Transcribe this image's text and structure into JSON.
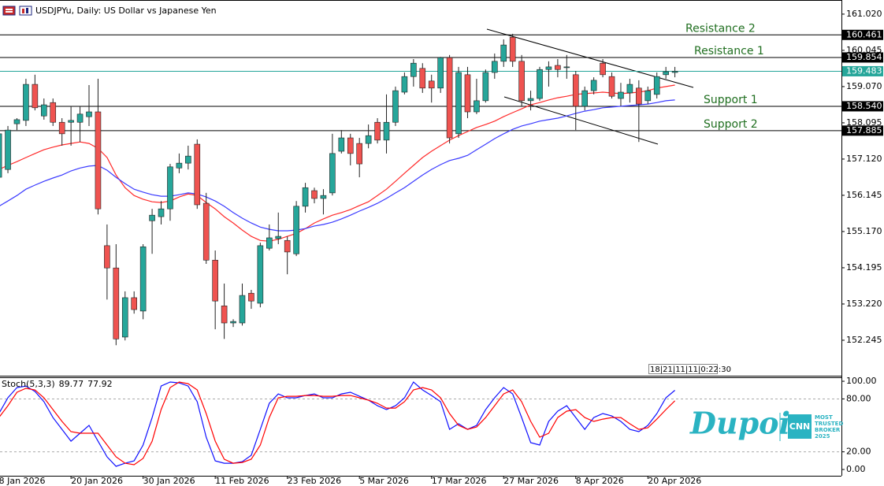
{
  "chart_data": {
    "type": "candlestick",
    "title": "USDJPYu, Daily:  US Dollar vs Japanese Yen",
    "timer_text": "18|21|11|11|0:22:30",
    "categories": [
      "8 Jan 2026",
      null,
      null,
      null,
      null,
      null,
      null,
      null,
      "20 Jan 2026",
      null,
      null,
      null,
      null,
      null,
      null,
      null,
      "30 Jan 2026",
      null,
      null,
      null,
      null,
      null,
      null,
      null,
      "11 Feb 2026",
      null,
      null,
      null,
      null,
      null,
      null,
      null,
      "23 Feb 2026",
      null,
      null,
      null,
      null,
      null,
      null,
      null,
      "5 Mar 2026",
      null,
      null,
      null,
      null,
      null,
      null,
      null,
      "17 Mar 2026",
      null,
      null,
      null,
      null,
      null,
      null,
      null,
      "27 Mar 2026",
      null,
      null,
      null,
      null,
      null,
      null,
      null,
      "8 Apr 2026",
      null,
      null,
      null,
      null,
      null,
      null,
      null,
      "20 Apr 2026",
      null,
      null,
      null
    ],
    "open": [
      156.63,
      156.84,
      158.07,
      158.16,
      159.13,
      158.28,
      158.64,
      158.11,
      158.11,
      158.11,
      158.26,
      158.39,
      154.79,
      154.19,
      152.33,
      153.39,
      153.03,
      155.46,
      155.57,
      155.78,
      156.88,
      157.01,
      157.52,
      155.93,
      154.4,
      153.17,
      152.71,
      152.71,
      153.51,
      153.24,
      154.72,
      154.98,
      154.93,
      154.57,
      155.85,
      156.27,
      156.06,
      156.21,
      157.33,
      157.69,
      157.54,
      157.54,
      158.11,
      157.63,
      158.11,
      158.92,
      159.34,
      159.56,
      159.22,
      159.03,
      159.85,
      157.8,
      159.39,
      158.39,
      158.69,
      159.45,
      159.75,
      160.4,
      159.75,
      158.69,
      158.75,
      159.53,
      159.64,
      159.6,
      159.39,
      158.54,
      158.96,
      159.7,
      159.34,
      158.75,
      158.9,
      159.03,
      158.69,
      158.86,
      159.39,
      159.45
    ],
    "high": [
      157.9,
      158.01,
      158.22,
      159.28,
      159.39,
      158.75,
      158.75,
      158.22,
      158.54,
      158.54,
      159.11,
      159.28,
      155.36,
      154.83,
      153.56,
      153.56,
      154.83,
      155.78,
      155.99,
      156.99,
      157.27,
      157.48,
      157.65,
      156.21,
      154.66,
      153.77,
      152.81,
      153.77,
      153.6,
      154.87,
      155.36,
      155.68,
      155.04,
      155.99,
      156.48,
      156.35,
      156.31,
      157.8,
      157.9,
      157.8,
      157.69,
      158.05,
      158.22,
      158.86,
      159.07,
      159.45,
      159.81,
      159.7,
      159.39,
      159.87,
      159.92,
      159.6,
      159.6,
      159.28,
      159.53,
      159.96,
      160.34,
      160.49,
      159.92,
      158.96,
      159.6,
      159.75,
      159.81,
      159.92,
      159.49,
      159.07,
      159.32,
      159.81,
      159.45,
      159.17,
      159.28,
      159.24,
      159.07,
      159.45,
      159.6,
      159.6
    ],
    "low": [
      156.52,
      156.74,
      157.9,
      158.01,
      158.43,
      158.18,
      158.01,
      157.48,
      157.48,
      157.58,
      158.01,
      155.63,
      153.34,
      152.11,
      152.24,
      152.96,
      152.81,
      154.57,
      155.36,
      155.46,
      156.74,
      156.84,
      155.78,
      154.3,
      152.54,
      152.28,
      152.6,
      152.64,
      153.09,
      153.13,
      154.66,
      154.83,
      154.02,
      154.51,
      155.68,
      155.93,
      155.63,
      156.14,
      157.27,
      156.95,
      156.63,
      157.41,
      157.54,
      157.27,
      158.01,
      158.86,
      159.07,
      158.9,
      158.64,
      158.9,
      157.54,
      157.69,
      158.22,
      158.33,
      158.64,
      159.28,
      159.6,
      159.6,
      158.54,
      158.43,
      158.69,
      159.07,
      159.32,
      159.28,
      157.9,
      158.43,
      158.86,
      159.32,
      158.75,
      158.54,
      158.64,
      157.58,
      158.6,
      158.75,
      159.28,
      159.32
    ],
    "close": [
      157.8,
      157.9,
      158.18,
      159.13,
      158.5,
      158.58,
      158.11,
      157.8,
      158.16,
      158.33,
      158.39,
      155.78,
      154.19,
      152.28,
      153.39,
      153.07,
      154.76,
      155.61,
      155.78,
      156.91,
      157.01,
      157.2,
      155.89,
      154.4,
      153.3,
      152.71,
      152.75,
      153.45,
      153.3,
      154.79,
      155.0,
      155.04,
      154.62,
      155.85,
      156.35,
      156.06,
      156.14,
      157.27,
      157.69,
      157.27,
      156.99,
      157.75,
      157.63,
      158.11,
      158.96,
      159.34,
      159.7,
      159.03,
      159.03,
      159.85,
      157.69,
      159.45,
      158.39,
      158.69,
      159.45,
      159.75,
      160.19,
      159.75,
      158.69,
      158.75,
      159.53,
      159.6,
      159.53,
      159.6,
      158.54,
      158.96,
      159.24,
      159.39,
      158.81,
      158.92,
      159.13,
      158.6,
      158.96,
      159.34,
      159.47,
      159.483
    ],
    "up_color": "#26a69a",
    "down_color": "#ef5350",
    "overlays": [
      {
        "color": "#ff2a2a",
        "values": [
          156.84,
          156.95,
          157.05,
          157.16,
          157.27,
          157.37,
          157.44,
          157.5,
          157.54,
          157.58,
          157.54,
          157.41,
          157.16,
          156.69,
          156.35,
          156.14,
          156.04,
          155.97,
          155.95,
          155.99,
          156.1,
          156.18,
          156.14,
          155.95,
          155.78,
          155.57,
          155.4,
          155.21,
          155.04,
          154.93,
          154.91,
          154.96,
          155.04,
          155.12,
          155.25,
          155.4,
          155.51,
          155.61,
          155.68,
          155.76,
          155.87,
          155.97,
          156.14,
          156.31,
          156.52,
          156.74,
          156.95,
          157.16,
          157.33,
          157.48,
          157.63,
          157.75,
          157.86,
          157.97,
          158.05,
          158.14,
          158.26,
          158.37,
          158.47,
          158.58,
          158.64,
          158.71,
          158.77,
          158.81,
          158.86,
          158.88,
          158.9,
          158.92,
          158.9,
          158.88,
          158.9,
          158.92,
          158.96,
          159.03,
          159.07,
          159.11
        ]
      },
      {
        "color": "#3a3aff",
        "values": [
          155.85,
          155.99,
          156.14,
          156.31,
          156.42,
          156.52,
          156.61,
          156.69,
          156.8,
          156.88,
          156.93,
          156.95,
          156.82,
          156.63,
          156.46,
          156.31,
          156.23,
          156.16,
          156.12,
          156.12,
          156.16,
          156.21,
          156.18,
          156.1,
          155.99,
          155.85,
          155.68,
          155.53,
          155.4,
          155.29,
          155.23,
          155.19,
          155.19,
          155.21,
          155.25,
          155.32,
          155.36,
          155.42,
          155.51,
          155.61,
          155.72,
          155.82,
          155.93,
          156.06,
          156.21,
          156.35,
          156.52,
          156.69,
          156.84,
          156.97,
          157.08,
          157.14,
          157.22,
          157.37,
          157.52,
          157.67,
          157.8,
          157.92,
          158.01,
          158.07,
          158.14,
          158.18,
          158.22,
          158.28,
          158.35,
          158.41,
          158.45,
          158.5,
          158.52,
          158.54,
          158.56,
          158.58,
          158.6,
          158.64,
          158.69,
          158.71
        ]
      }
    ],
    "ylim": [
      151.29,
      161.4
    ],
    "yticks": [
      {
        "value": 161.02,
        "label": "161.020"
      },
      160.045,
      {
        "value": 159.07,
        "label": "159.070"
      },
      158.095,
      {
        "value": 157.12,
        "label": "157.120"
      },
      156.145,
      {
        "value": 155.17,
        "label": "155.170"
      },
      154.195,
      {
        "value": 153.22,
        "label": "153.220"
      },
      152.245
    ],
    "levels": [
      {
        "value": 160.461,
        "text": "Resistance 2"
      },
      {
        "value": 159.854,
        "text": "Resistance 1"
      },
      {
        "value": 158.54,
        "label": "158.540",
        "text": "Support 1"
      },
      {
        "value": 157.885,
        "text": "Support 2"
      }
    ],
    "current_price": 159.483,
    "current_color": "#26a69a",
    "indicator": {
      "type": "line",
      "title": "Stoch(5,3,3)",
      "series": [
        {
          "color": "#1010ff",
          "values": [
            63.4,
            81.3,
            92.9,
            94.6,
            88.4,
            76.8,
            58.9,
            45.5,
            32.1,
            41.1,
            50.0,
            32.1,
            14.3,
            3.6,
            7.1,
            9.8,
            27.7,
            58.9,
            94.6,
            99.1,
            98.2,
            94.6,
            76.8,
            36.6,
            9.8,
            7.1,
            7.1,
            8.9,
            16.1,
            45.5,
            75.0,
            85.7,
            81.3,
            81.3,
            83.9,
            85.7,
            81.3,
            81.3,
            85.7,
            87.5,
            83.0,
            78.6,
            72.3,
            67.9,
            72.3,
            81.3,
            99.1,
            90.2,
            83.9,
            76.8,
            45.5,
            51.8,
            45.5,
            50.0,
            67.9,
            81.3,
            92.9,
            85.7,
            58.9,
            30.4,
            27.7,
            54.5,
            66.1,
            72.3,
            58.9,
            45.5,
            58.9,
            63.4,
            60.7,
            54.5,
            45.5,
            42.9,
            50.0,
            63.4,
            81.3,
            89.77
          ]
        },
        {
          "color": "#ff0000",
          "values": [
            58.9,
            72.3,
            87.5,
            92.0,
            90.2,
            81.3,
            67.9,
            54.5,
            42.9,
            41.1,
            41.1,
            41.1,
            27.7,
            14.3,
            7.1,
            5.4,
            12.5,
            32.1,
            67.9,
            92.9,
            99.1,
            97.3,
            90.2,
            63.4,
            32.1,
            11.6,
            7.1,
            8.0,
            11.6,
            27.7,
            58.9,
            81.3,
            83.0,
            83.0,
            83.9,
            83.9,
            83.0,
            83.0,
            83.9,
            83.9,
            81.3,
            78.6,
            75.0,
            69.6,
            69.6,
            76.8,
            90.2,
            92.9,
            90.2,
            81.3,
            63.4,
            50.0,
            45.5,
            48.2,
            58.9,
            72.3,
            85.7,
            90.2,
            76.8,
            54.5,
            36.6,
            41.1,
            58.9,
            66.1,
            67.9,
            58.9,
            54.5,
            57.1,
            58.9,
            58.9,
            51.8,
            45.5,
            47.3,
            57.1,
            67.9,
            77.92
          ]
        }
      ],
      "ylim": [
        -8,
        104.5
      ],
      "yticks": [
        {
          "value": 100,
          "label": "100.00"
        },
        {
          "value": 80,
          "label": "80.00"
        },
        {
          "value": 20,
          "label": "20.00"
        },
        {
          "value": 0,
          "label": "0.00"
        }
      ],
      "level_lines": [
        80,
        20
      ]
    },
    "logo": {
      "brand": "Dupoin",
      "badge": "CNN",
      "tagline": [
        "MOST",
        "TRUSTED",
        "BROKER",
        "2025"
      ]
    }
  }
}
